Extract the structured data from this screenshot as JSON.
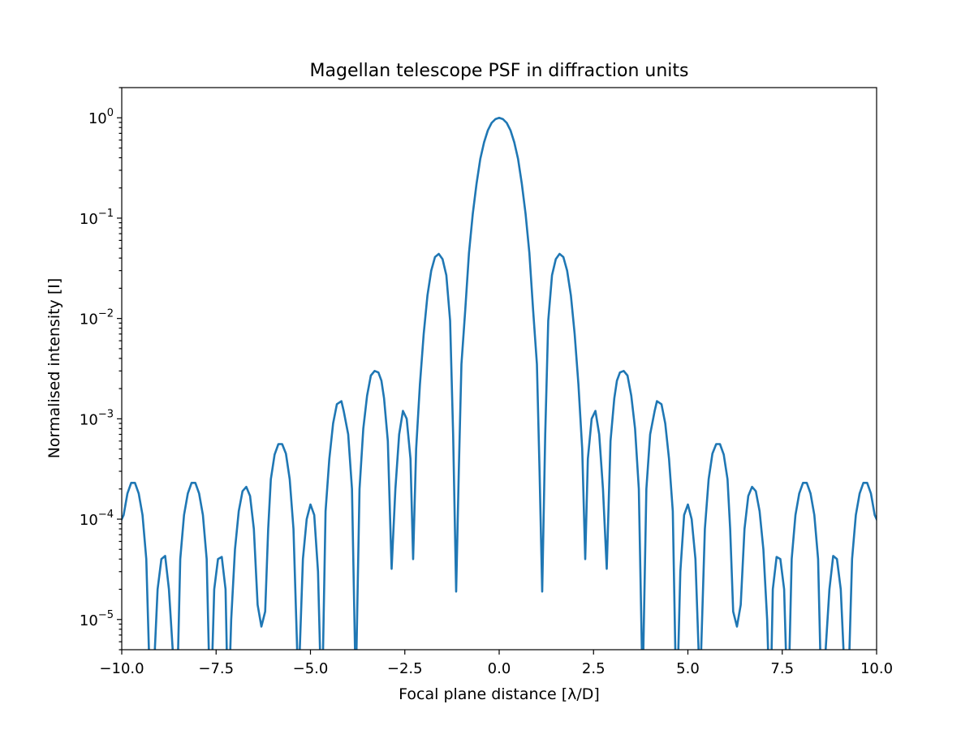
{
  "chart_data": {
    "type": "line",
    "title": "Magellan telescope PSF in diffraction units",
    "xlabel": "Focal plane distance [λ/D]",
    "ylabel": "Normalised intensity [I]",
    "xlim": [
      -10,
      10
    ],
    "ylim": [
      5e-06,
      2
    ],
    "yscale": "log",
    "grid": false,
    "x_ticks": [
      {
        "value": -10,
        "label": "−10.0"
      },
      {
        "value": -7.5,
        "label": "−7.5"
      },
      {
        "value": -5,
        "label": "−5.0"
      },
      {
        "value": -2.5,
        "label": "−2.5"
      },
      {
        "value": 0,
        "label": "0.0"
      },
      {
        "value": 2.5,
        "label": "2.5"
      },
      {
        "value": 5,
        "label": "5.0"
      },
      {
        "value": 7.5,
        "label": "7.5"
      },
      {
        "value": 10,
        "label": "10.0"
      }
    ],
    "y_ticks": [
      {
        "value": 1,
        "base": "10",
        "exp": "0"
      },
      {
        "value": 0.1,
        "base": "10",
        "exp": "−1"
      },
      {
        "value": 0.01,
        "base": "10",
        "exp": "−2"
      },
      {
        "value": 0.001,
        "base": "10",
        "exp": "−3"
      },
      {
        "value": 0.0001,
        "base": "10",
        "exp": "−4"
      },
      {
        "value": 1e-05,
        "base": "10",
        "exp": "−5"
      }
    ],
    "series": [
      {
        "color": "#1f77b4",
        "x": [
          0,
          0.1,
          0.2,
          0.3,
          0.4,
          0.5,
          0.6,
          0.7,
          0.8,
          0.9,
          1.0,
          1.07,
          1.14,
          1.22,
          1.3,
          1.4,
          1.5,
          1.6,
          1.7,
          1.8,
          1.9,
          2.0,
          2.1,
          2.2,
          2.28,
          2.35,
          2.45,
          2.55,
          2.65,
          2.75,
          2.85,
          2.95,
          3.05,
          3.12,
          3.2,
          3.3,
          3.4,
          3.5,
          3.6,
          3.7,
          3.8,
          3.9,
          4.0,
          4.12,
          4.18,
          4.3,
          4.4,
          4.5,
          4.6,
          4.7,
          4.8,
          4.9,
          5.0,
          5.1,
          5.2,
          5.32,
          5.45,
          5.55,
          5.65,
          5.75,
          5.85,
          5.95,
          6.05,
          6.12,
          6.2,
          6.3,
          6.4,
          6.5,
          6.6,
          6.7,
          6.8,
          6.9,
          7.0,
          7.1,
          7.18,
          7.25,
          7.35,
          7.45,
          7.55,
          7.65,
          7.75,
          7.85,
          7.95,
          8.05,
          8.15,
          8.25,
          8.35,
          8.45,
          8.55,
          8.65,
          8.75,
          8.85,
          8.95,
          9.05,
          9.15,
          9.25,
          9.35,
          9.45,
          9.55,
          9.65,
          9.75,
          9.85,
          9.95,
          10.0
        ],
        "y": [
          1.0,
          0.97,
          0.89,
          0.75,
          0.57,
          0.39,
          0.22,
          0.11,
          0.045,
          0.012,
          0.0035,
          0.0003,
          1.9e-05,
          0.0007,
          0.0095,
          0.027,
          0.039,
          0.044,
          0.041,
          0.03,
          0.017,
          0.007,
          0.0022,
          0.0005,
          4e-05,
          0.0004,
          0.001,
          0.0012,
          0.0007,
          0.0002,
          3.2e-05,
          0.0006,
          0.0016,
          0.0024,
          0.0029,
          0.003,
          0.0027,
          0.0017,
          0.0008,
          0.0002,
          2e-06,
          0.0002,
          0.0007,
          0.0012,
          0.0015,
          0.0014,
          0.0009,
          0.0004,
          0.00012,
          1e-06,
          3e-05,
          0.00011,
          0.00014,
          0.0001,
          4e-05,
          2e-06,
          8e-05,
          0.00025,
          0.00045,
          0.00056,
          0.00056,
          0.00044,
          0.00025,
          8e-05,
          1.2e-05,
          8.5e-06,
          1.4e-05,
          8e-05,
          0.00017,
          0.00021,
          0.00019,
          0.00012,
          5e-05,
          1e-05,
          1e-06,
          2e-05,
          4.2e-05,
          4e-05,
          2e-05,
          1e-06,
          4e-05,
          0.00011,
          0.00018,
          0.00023,
          0.00023,
          0.00018,
          0.00011,
          4e-05,
          1e-06,
          5e-06,
          2e-05,
          4.3e-05,
          4e-05,
          2e-05,
          3e-06,
          2e-06,
          4e-05,
          0.00011,
          0.00018,
          0.00023,
          0.00023,
          0.00018,
          0.00011,
          0.0001
        ],
        "symmetric_about_zero": true
      }
    ]
  }
}
